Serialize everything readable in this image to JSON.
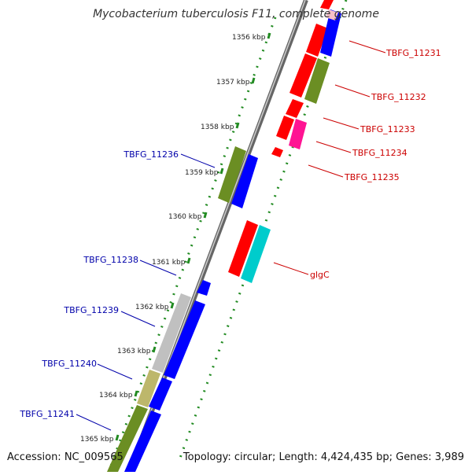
{
  "title": "Mycobacterium tuberculosis F11, complete genome",
  "accession_text": "Accession: NC_009565",
  "topology_text": "Topology: circular; Length: 4,424,435 bp; Genes: 3,989",
  "ticks": [
    {
      "label": "1356 kbp"
    },
    {
      "label": "1357 kbp"
    },
    {
      "label": "1358 kbp"
    },
    {
      "label": "1359 kbp"
    },
    {
      "label": "1360 kbp"
    },
    {
      "label": "1361 kbp"
    },
    {
      "label": "1362 kbp"
    },
    {
      "label": "1363 kbp"
    },
    {
      "label": "1364 kbp"
    },
    {
      "label": "1365 kbp"
    }
  ],
  "genes_right": [
    {
      "label": "TBFG_11231",
      "color": "#cc0000"
    },
    {
      "label": "TBFG_11232",
      "color": "#cc0000"
    },
    {
      "label": "TBFG_11233",
      "color": "#cc0000"
    },
    {
      "label": "TBFG_11234",
      "color": "#cc0000"
    },
    {
      "label": "TBFG_11235",
      "color": "#cc0000"
    },
    {
      "label": "glgC",
      "color": "#cc0000"
    }
  ],
  "genes_left": [
    {
      "label": "TBFG_11236",
      "color": "#0000aa"
    },
    {
      "label": "TBFG_11238",
      "color": "#0000aa"
    },
    {
      "label": "TBFG_11239",
      "color": "#0000aa"
    },
    {
      "label": "TBFG_11240",
      "color": "#0000aa"
    },
    {
      "label": "TBFG_11241",
      "color": "#0000aa"
    }
  ],
  "colors": {
    "forward_cds": "#ff0000",
    "reverse_cds": "#0000ff",
    "olive": "#6b8e23",
    "khaki": "#bdb76b",
    "gray": "#c0c0c0",
    "cyan": "#00cccc",
    "magenta": "#ff1493",
    "ruler_dots": "#228b22"
  }
}
